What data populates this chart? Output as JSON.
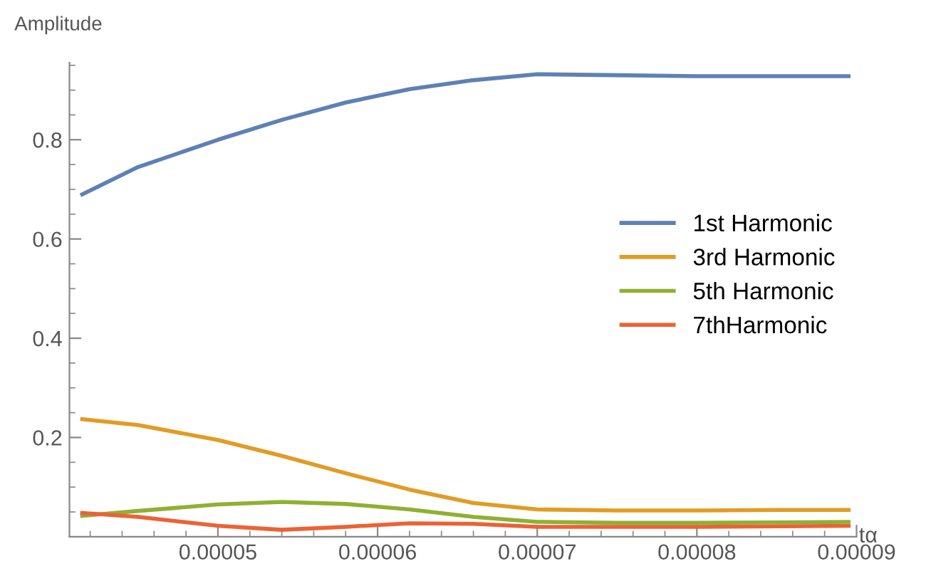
{
  "chart_data": {
    "type": "line",
    "xlabel": "tα",
    "ylabel": "Amplitude",
    "x": [
      4.15e-05,
      4.5e-05,
      5e-05,
      5.4e-05,
      5.8e-05,
      6.2e-05,
      6.6e-05,
      7e-05,
      7.5e-05,
      8e-05,
      8.5e-05,
      8.95e-05
    ],
    "series": [
      {
        "name": "1st Harmonic",
        "color": "#5e81b5",
        "values": [
          0.69,
          0.745,
          0.8,
          0.84,
          0.875,
          0.902,
          0.92,
          0.932,
          0.93,
          0.928,
          0.928,
          0.928
        ]
      },
      {
        "name": "3rd Harmonic",
        "color": "#e19c24",
        "values": [
          0.237,
          0.225,
          0.195,
          0.163,
          0.128,
          0.095,
          0.068,
          0.055,
          0.053,
          0.053,
          0.054,
          0.054
        ]
      },
      {
        "name": "5th Harmonic",
        "color": "#8fb032",
        "values": [
          0.042,
          0.052,
          0.065,
          0.07,
          0.066,
          0.055,
          0.04,
          0.03,
          0.028,
          0.028,
          0.029,
          0.03
        ]
      },
      {
        "name": "7thHarmonic",
        "color": "#eb6235",
        "values": [
          0.048,
          0.04,
          0.022,
          0.014,
          0.02,
          0.027,
          0.026,
          0.02,
          0.02,
          0.02,
          0.021,
          0.022
        ]
      }
    ],
    "xlim": [
      4.07e-05,
      9e-05
    ],
    "ylim": [
      0,
      0.955
    ],
    "xticks": [
      {
        "value": 5e-05,
        "label": "0.00005"
      },
      {
        "value": 6e-05,
        "label": "0.00006"
      },
      {
        "value": 7e-05,
        "label": "0.00007"
      },
      {
        "value": 8e-05,
        "label": "0.00008"
      },
      {
        "value": 9e-05,
        "label": "0.00009"
      }
    ],
    "yticks": [
      0.2,
      0.4,
      0.6,
      0.8
    ],
    "grid": false,
    "legend": "right",
    "marker": "none",
    "line_style": "solid"
  }
}
